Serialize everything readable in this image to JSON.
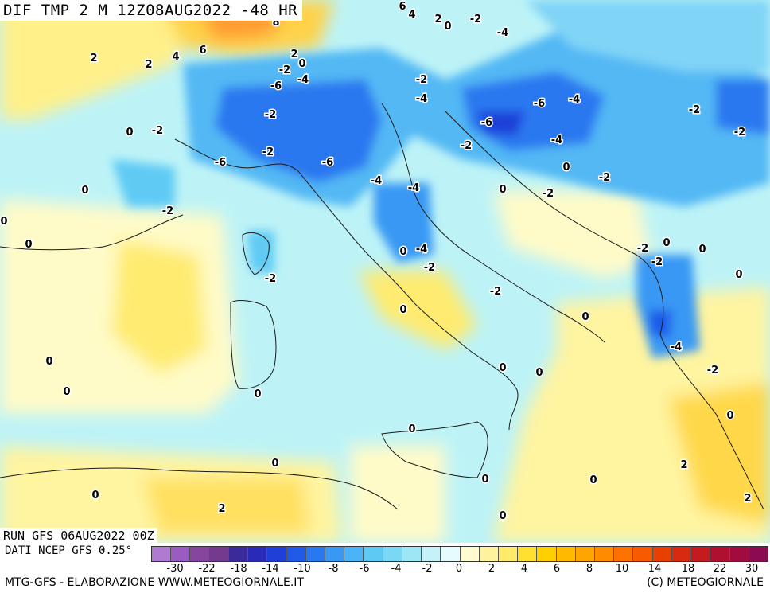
{
  "header": {
    "title": "DIF TMP 2 M 12Z08AUG2022 -48 HR"
  },
  "run": {
    "label": "RUN GFS 06AUG2022 00Z"
  },
  "source": {
    "label": "DATI NCEP GFS 0.25°"
  },
  "footer": {
    "left": "MTG-GFS - ELABORAZIONE WWW.METEOGIORNALE.IT",
    "right": "(C) METEOGIORNALE"
  },
  "legend": {
    "colors": [
      "#b07ad0",
      "#9a5cc0",
      "#86469e",
      "#733a8e",
      "#3a2a9a",
      "#2a2ab8",
      "#1f3fd8",
      "#1f5ae8",
      "#2a78f0",
      "#3898f4",
      "#4ab4f6",
      "#5ecaf4",
      "#7ad8f4",
      "#9ee6f6",
      "#c4f2f8",
      "#e6fbfb",
      "#fffbd0",
      "#fff3a0",
      "#ffeb6a",
      "#ffe030",
      "#ffd000",
      "#ffbb00",
      "#ffa500",
      "#ff8c00",
      "#ff7200",
      "#f85a00",
      "#e84000",
      "#d82a10",
      "#c41a20",
      "#b01030",
      "#a00c40",
      "#8c0a50"
    ],
    "tick_labels": [
      "-30",
      "-22",
      "-18",
      "-14",
      "-10",
      "-8",
      "-6",
      "-4",
      "-2",
      "0",
      "2",
      "4",
      "6",
      "8",
      "10",
      "14",
      "18",
      "22",
      "30"
    ]
  },
  "contour_labels": [
    {
      "text": "6",
      "c": "pos"
    },
    {
      "text": "4",
      "c": "pos"
    },
    {
      "text": "2",
      "c": "pos"
    },
    {
      "text": "0",
      "c": "z"
    },
    {
      "text": "-2",
      "c": "neg"
    },
    {
      "text": "-4",
      "c": "neg"
    },
    {
      "text": "8",
      "c": "pos"
    },
    {
      "text": "6",
      "c": "pos"
    },
    {
      "text": "4",
      "c": "pos"
    },
    {
      "text": "2",
      "c": "pos"
    },
    {
      "text": "2",
      "c": "pos"
    },
    {
      "text": "-2",
      "c": "neg"
    },
    {
      "text": "-6",
      "c": "neg"
    },
    {
      "text": "-4",
      "c": "neg"
    },
    {
      "text": "-2",
      "c": "neg"
    },
    {
      "text": "-4",
      "c": "neg"
    },
    {
      "text": "-6",
      "c": "neg"
    },
    {
      "text": "-4",
      "c": "neg"
    },
    {
      "text": "-2",
      "c": "neg"
    },
    {
      "text": "-6",
      "c": "neg"
    },
    {
      "text": "-6",
      "c": "neg"
    },
    {
      "text": "0",
      "c": "z"
    },
    {
      "text": "-2",
      "c": "neg"
    },
    {
      "text": "-2",
      "c": "neg"
    },
    {
      "text": "-4",
      "c": "neg"
    },
    {
      "text": "-4",
      "c": "neg"
    },
    {
      "text": "-6",
      "c": "neg"
    },
    {
      "text": "-4",
      "c": "neg"
    },
    {
      "text": "-2",
      "c": "neg"
    },
    {
      "text": "-2",
      "c": "neg"
    },
    {
      "text": "0",
      "c": "z"
    },
    {
      "text": "-2",
      "c": "neg"
    },
    {
      "text": "0",
      "c": "z"
    },
    {
      "text": "-2",
      "c": "neg"
    },
    {
      "text": "0",
      "c": "z"
    },
    {
      "text": "-2",
      "c": "neg"
    },
    {
      "text": "2",
      "c": "pos"
    },
    {
      "text": "0",
      "c": "z"
    },
    {
      "text": "-2",
      "c": "neg"
    },
    {
      "text": "0",
      "c": "z"
    },
    {
      "text": "0",
      "c": "z"
    },
    {
      "text": "-4",
      "c": "neg"
    },
    {
      "text": "-2",
      "c": "neg"
    },
    {
      "text": "-2",
      "c": "neg"
    },
    {
      "text": "0",
      "c": "z"
    },
    {
      "text": "-2",
      "c": "neg"
    },
    {
      "text": "0",
      "c": "z"
    },
    {
      "text": "-4",
      "c": "neg"
    },
    {
      "text": "-2",
      "c": "neg"
    },
    {
      "text": "0",
      "c": "z"
    },
    {
      "text": "0",
      "c": "z"
    },
    {
      "text": "0",
      "c": "z"
    },
    {
      "text": "0",
      "c": "z"
    },
    {
      "text": "0",
      "c": "z"
    },
    {
      "text": "0",
      "c": "z"
    },
    {
      "text": "0",
      "c": "z"
    },
    {
      "text": "0",
      "c": "z"
    },
    {
      "text": "2",
      "c": "pos"
    },
    {
      "text": "0",
      "c": "z"
    },
    {
      "text": "0",
      "c": "z"
    },
    {
      "text": "2",
      "c": "pos"
    },
    {
      "text": "0",
      "c": "z"
    },
    {
      "text": "0",
      "c": "z"
    },
    {
      "text": "2",
      "c": "pos"
    },
    {
      "text": "0",
      "c": "z"
    },
    {
      "text": "0",
      "c": "z"
    },
    {
      "text": "-4",
      "c": "neg"
    },
    {
      "text": "-2",
      "c": "neg"
    },
    {
      "text": "0",
      "c": "z"
    },
    {
      "text": "-2",
      "c": "neg"
    },
    {
      "text": "0",
      "c": "z"
    }
  ]
}
